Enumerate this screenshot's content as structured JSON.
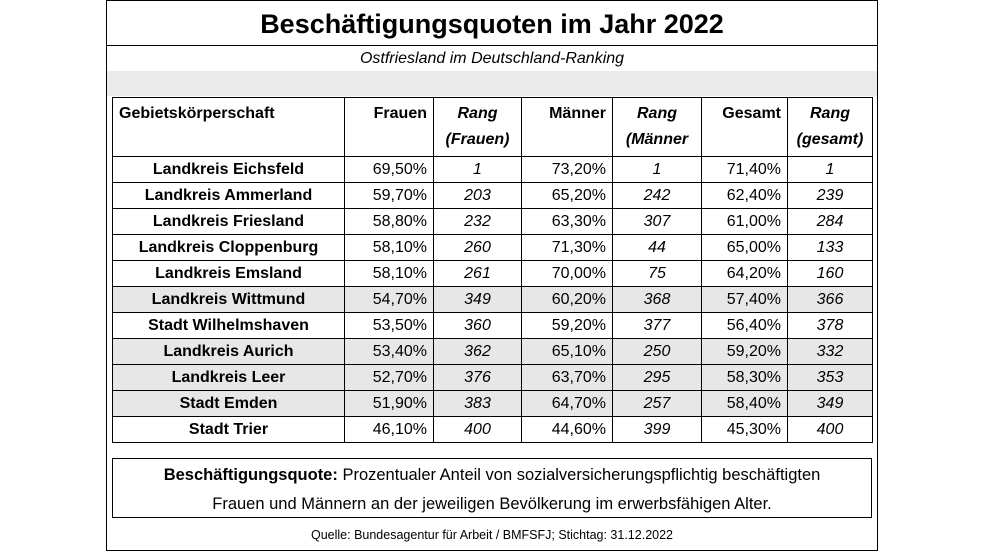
{
  "title": "Beschäftigungsquoten im Jahr 2022",
  "subtitle": "Ostfriesland im Deutschland-Ranking",
  "table": {
    "headers": {
      "gebiet": "Gebietskörperschaft",
      "frauen": "Frauen",
      "rang_frauen_1": "Rang",
      "rang_frauen_2": "(Frauen)",
      "maenner": "Männer",
      "rang_maenner_1": "Rang",
      "rang_maenner_2": "(Männer",
      "gesamt": "Gesamt",
      "rang_gesamt_1": "Rang",
      "rang_gesamt_2": "(gesamt)"
    },
    "rows": [
      {
        "name": "Landkreis Eichsfeld",
        "frauen": "69,50%",
        "rang_frauen": "1",
        "maenner": "73,20%",
        "rang_maenner": "1",
        "gesamt": "71,40%",
        "rang_gesamt": "1"
      },
      {
        "name": "Landkreis Ammerland",
        "frauen": "59,70%",
        "rang_frauen": "203",
        "maenner": "65,20%",
        "rang_maenner": "242",
        "gesamt": "62,40%",
        "rang_gesamt": "239"
      },
      {
        "name": "Landkreis Friesland",
        "frauen": "58,80%",
        "rang_frauen": "232",
        "maenner": "63,30%",
        "rang_maenner": "307",
        "gesamt": "61,00%",
        "rang_gesamt": "284"
      },
      {
        "name": "Landkreis Cloppenburg",
        "frauen": "58,10%",
        "rang_frauen": "260",
        "maenner": "71,30%",
        "rang_maenner": "44",
        "gesamt": "65,00%",
        "rang_gesamt": "133"
      },
      {
        "name": "Landkreis Emsland",
        "frauen": "58,10%",
        "rang_frauen": "261",
        "maenner": "70,00%",
        "rang_maenner": "75",
        "gesamt": "64,20%",
        "rang_gesamt": "160"
      },
      {
        "name": "Landkreis Wittmund",
        "frauen": "54,70%",
        "rang_frauen": "349",
        "maenner": "60,20%",
        "rang_maenner": "368",
        "gesamt": "57,40%",
        "rang_gesamt": "366"
      },
      {
        "name": "Stadt Wilhelmshaven",
        "frauen": "53,50%",
        "rang_frauen": "360",
        "maenner": "59,20%",
        "rang_maenner": "377",
        "gesamt": "56,40%",
        "rang_gesamt": "378"
      },
      {
        "name": "Landkreis Aurich",
        "frauen": "53,40%",
        "rang_frauen": "362",
        "maenner": "65,10%",
        "rang_maenner": "250",
        "gesamt": "59,20%",
        "rang_gesamt": "332"
      },
      {
        "name": "Landkreis Leer",
        "frauen": "52,70%",
        "rang_frauen": "376",
        "maenner": "63,70%",
        "rang_maenner": "295",
        "gesamt": "58,30%",
        "rang_gesamt": "353"
      },
      {
        "name": "Stadt Emden",
        "frauen": "51,90%",
        "rang_frauen": "383",
        "maenner": "64,70%",
        "rang_maenner": "257",
        "gesamt": "58,40%",
        "rang_gesamt": "349"
      },
      {
        "name": "Stadt Trier",
        "frauen": "46,10%",
        "rang_frauen": "400",
        "maenner": "44,60%",
        "rang_maenner": "399",
        "gesamt": "45,30%",
        "rang_gesamt": "400"
      }
    ]
  },
  "definition": {
    "term": "Beschäftigungsquote:",
    "line1": "Prozentualer Anteil von sozialversicherungspflichtig beschäftigten",
    "line2": "Frauen und Männern an der jeweiligen Bevölkerung im erwerbsfähigen Alter."
  },
  "source": "Quelle: Bundesagentur für Arbeit / BMFSFJ; Stichtag: 31.12.2022",
  "colors": {
    "row_shade": "#e7e7e7",
    "band": "#ebebeb",
    "border": "#000000"
  }
}
